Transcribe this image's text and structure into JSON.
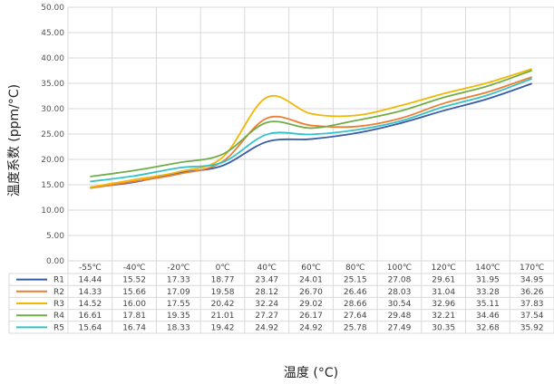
{
  "chart_data": {
    "type": "line",
    "xlabel": "温度 (°C)",
    "ylabel": "温度系数 (ppm/°C)",
    "ylim": [
      0,
      50
    ],
    "yticks": [
      "0.00",
      "5.00",
      "10.00",
      "15.00",
      "20.00",
      "25.00",
      "30.00",
      "35.00",
      "40.00",
      "45.00",
      "50.00"
    ],
    "categories": [
      "-55℃",
      "-40℃",
      "-20℃",
      "0℃",
      "40℃",
      "60℃",
      "80℃",
      "100℃",
      "120℃",
      "140℃",
      "170℃"
    ],
    "grid": true,
    "legend": "data-table-below",
    "series": [
      {
        "name": "R1",
        "color": "#3a5ba8",
        "values": [
          "14.44",
          "15.52",
          "17.33",
          "18.77",
          "23.47",
          "24.01",
          "25.15",
          "27.08",
          "29.61",
          "31.95",
          "34.95"
        ]
      },
      {
        "name": "R2",
        "color": "#ed7d31",
        "values": [
          "14.33",
          "15.66",
          "17.09",
          "19.58",
          "28.12",
          "26.70",
          "26.46",
          "28.03",
          "31.04",
          "33.28",
          "36.26"
        ]
      },
      {
        "name": "R3",
        "color": "#f2b705",
        "values": [
          "14.52",
          "16.00",
          "17.55",
          "20.42",
          "32.24",
          "29.02",
          "28.66",
          "30.54",
          "32.96",
          "35.11",
          "37.83"
        ]
      },
      {
        "name": "R4",
        "color": "#70ad47",
        "values": [
          "16.61",
          "17.81",
          "19.35",
          "21.01",
          "27.27",
          "26.17",
          "27.64",
          "29.48",
          "32.21",
          "34.46",
          "37.54"
        ]
      },
      {
        "name": "R5",
        "color": "#33c3c9",
        "values": [
          "15.64",
          "16.74",
          "18.33",
          "19.42",
          "24.92",
          "24.92",
          "25.78",
          "27.49",
          "30.35",
          "32.68",
          "35.92"
        ]
      }
    ]
  }
}
